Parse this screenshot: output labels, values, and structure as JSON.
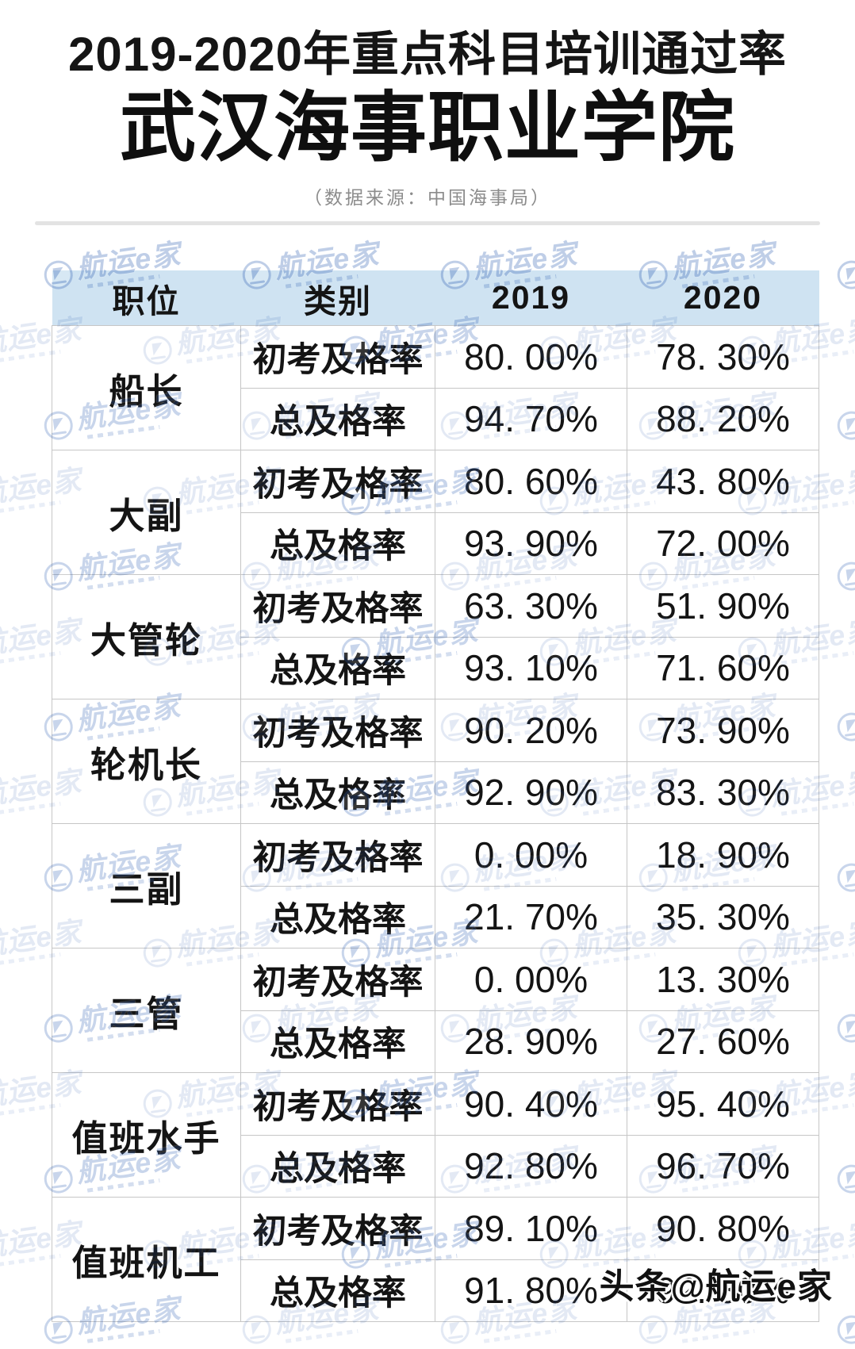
{
  "page": {
    "title_line1": "2019-2020年重点科目培训通过率",
    "title_line2": "武汉海事职业学院",
    "subtitle": "（数据来源：中国海事局）",
    "credit": "头条@航运e家",
    "watermark_text": "航运e家"
  },
  "chart_data": {
    "type": "table",
    "title": "2019-2020年重点科目培训通过率",
    "subtitle": "武汉海事职业学院",
    "source": "数据来源：中国海事局",
    "columns": [
      "职位",
      "类别",
      "2019",
      "2020"
    ],
    "groups": [
      {
        "position": "船长",
        "rows": [
          {
            "category": "初考及格率",
            "y2019": "80. 00%",
            "y2020": "78. 30%"
          },
          {
            "category": "总及格率",
            "y2019": "94. 70%",
            "y2020": "88. 20%"
          }
        ]
      },
      {
        "position": "大副",
        "rows": [
          {
            "category": "初考及格率",
            "y2019": "80. 60%",
            "y2020": "43. 80%"
          },
          {
            "category": "总及格率",
            "y2019": "93. 90%",
            "y2020": "72. 00%"
          }
        ]
      },
      {
        "position": "大管轮",
        "rows": [
          {
            "category": "初考及格率",
            "y2019": "63. 30%",
            "y2020": "51. 90%"
          },
          {
            "category": "总及格率",
            "y2019": "93. 10%",
            "y2020": "71. 60%"
          }
        ]
      },
      {
        "position": "轮机长",
        "rows": [
          {
            "category": "初考及格率",
            "y2019": "90. 20%",
            "y2020": "73. 90%"
          },
          {
            "category": "总及格率",
            "y2019": "92. 90%",
            "y2020": "83. 30%"
          }
        ]
      },
      {
        "position": "三副",
        "rows": [
          {
            "category": "初考及格率",
            "y2019": "0. 00%",
            "y2020": "18. 90%"
          },
          {
            "category": "总及格率",
            "y2019": "21. 70%",
            "y2020": "35. 30%"
          }
        ]
      },
      {
        "position": "三管",
        "rows": [
          {
            "category": "初考及格率",
            "y2019": "0. 00%",
            "y2020": "13. 30%"
          },
          {
            "category": "总及格率",
            "y2019": "28. 90%",
            "y2020": "27. 60%"
          }
        ]
      },
      {
        "position": "值班水手",
        "rows": [
          {
            "category": "初考及格率",
            "y2019": "90. 40%",
            "y2020": "95. 40%"
          },
          {
            "category": "总及格率",
            "y2019": "92. 80%",
            "y2020": "96. 70%"
          }
        ]
      },
      {
        "position": "值班机工",
        "rows": [
          {
            "category": "初考及格率",
            "y2019": "89. 10%",
            "y2020": "90. 80%"
          },
          {
            "category": "总及格率",
            "y2019": "91. 80%",
            "y2020": "92. 80%"
          }
        ]
      }
    ]
  },
  "colors": {
    "header_bg": "#cfe3f2",
    "watermark_blue": "#2f5fb3",
    "border": "#c6c6c6",
    "text": "#141414",
    "subtitle_gray": "#8c8c8c",
    "divider": "#e3e3e3"
  }
}
